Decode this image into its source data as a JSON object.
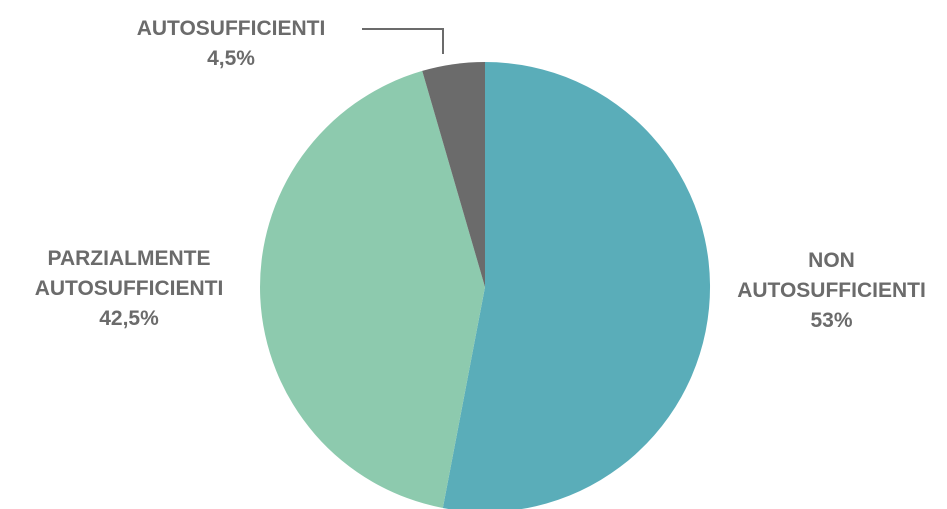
{
  "chart_data": {
    "type": "pie",
    "slices": [
      {
        "name": "NON AUTOSUFFICIENTI",
        "label_lines": [
          "NON",
          "AUTOSUFFICIENTI"
        ],
        "value": 53,
        "value_label": "53%",
        "color": "#5AADB9"
      },
      {
        "name": "PARZIALMENTE AUTOSUFFICIENTI",
        "label_lines": [
          "PARZIALMENTE",
          "AUTOSUFFICIENTI"
        ],
        "value": 42.5,
        "value_label": "42,5%",
        "color": "#8DCAAE"
      },
      {
        "name": "AUTOSUFFICIENTI",
        "label_lines": [
          "AUTOSUFFICIENTI"
        ],
        "value": 4.5,
        "value_label": "4,5%",
        "color": "#6B6B6B"
      }
    ],
    "start": "12 o'clock",
    "direction": "clockwise",
    "label_color": "#6B6B6B",
    "leader_line_color": "#6B6B6B"
  }
}
